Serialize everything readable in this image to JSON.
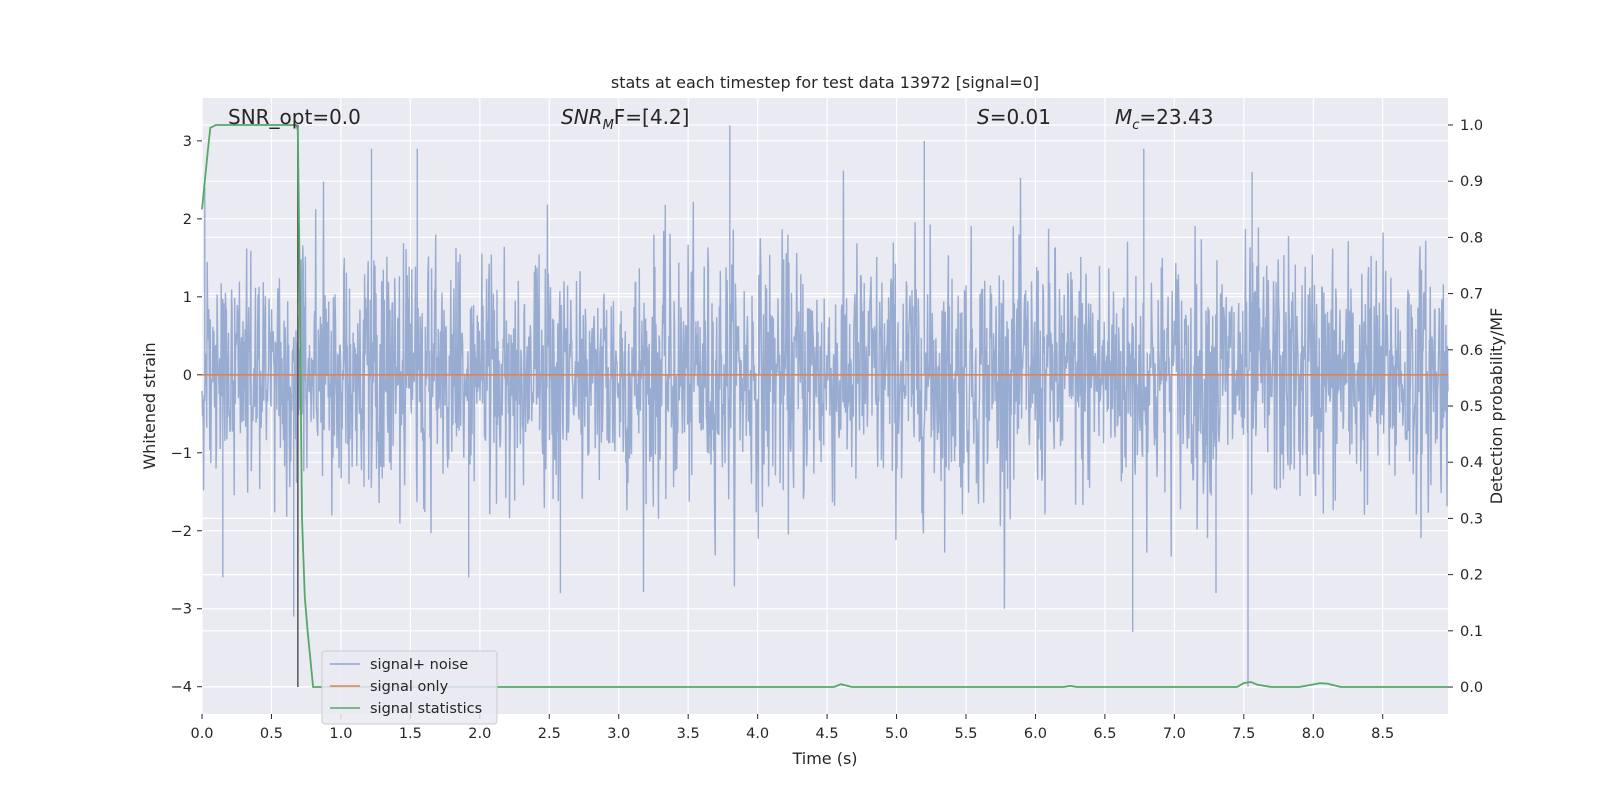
{
  "chart_data": {
    "type": "line",
    "title": "stats at each timestep for test data 13972 [signal=0]",
    "xlabel": "Time (s)",
    "ylabel": "Whitened strain",
    "y2label": "Detection probability/MF",
    "xlim": [
      0.0,
      8.97
    ],
    "ylim": [
      -4.35,
      3.55
    ],
    "y2lim": [
      -0.048,
      1.048
    ],
    "xticks": [
      "0.0",
      "0.5",
      "1.0",
      "1.5",
      "2.0",
      "2.5",
      "3.0",
      "3.5",
      "4.0",
      "4.5",
      "5.0",
      "5.5",
      "6.0",
      "6.5",
      "7.0",
      "7.5",
      "8.0",
      "8.5"
    ],
    "xtick_values": [
      0.0,
      0.5,
      1.0,
      1.5,
      2.0,
      2.5,
      3.0,
      3.5,
      4.0,
      4.5,
      5.0,
      5.5,
      6.0,
      6.5,
      7.0,
      7.5,
      8.0,
      8.5
    ],
    "yticks": [
      "3",
      "2",
      "1",
      "0",
      "−1",
      "−2",
      "−3",
      "−4"
    ],
    "ytick_values": [
      3,
      2,
      1,
      0,
      -1,
      -2,
      -3,
      -4
    ],
    "y2ticks": [
      "1.0",
      "0.9",
      "0.8",
      "0.7",
      "0.6",
      "0.5",
      "0.4",
      "0.3",
      "0.2",
      "0.1",
      "0.0"
    ],
    "y2tick_values": [
      1.0,
      0.9,
      0.8,
      0.7,
      0.6,
      0.5,
      0.4,
      0.3,
      0.2,
      0.1,
      0.0
    ],
    "grid": true,
    "legend_placement": "lower-left",
    "annotations": {
      "snr_opt": "SNR_opt=0.0",
      "snr_mf_main": "SNR",
      "snr_mf_sub": "M",
      "snr_mf_rest": "F=[4.2]",
      "s_main": "S",
      "s_rest": "=0.01",
      "mc_main": "M",
      "mc_sub": "c",
      "mc_rest": "=23.43"
    },
    "marker_line_x": 0.69,
    "series": [
      {
        "name": "signal+ noise",
        "color": "#8fa4cc",
        "noise_std": 0.8,
        "spikes": [
          {
            "x": 0.02,
            "y": 2.4
          },
          {
            "x": 0.15,
            "y": -2.6
          },
          {
            "x": 0.66,
            "y": -3.1
          },
          {
            "x": 1.22,
            "y": 2.9
          },
          {
            "x": 1.55,
            "y": 2.9
          },
          {
            "x": 1.92,
            "y": -2.6
          },
          {
            "x": 2.58,
            "y": -2.8
          },
          {
            "x": 3.8,
            "y": 3.2
          },
          {
            "x": 5.2,
            "y": 3.0
          },
          {
            "x": 6.7,
            "y": -3.3
          },
          {
            "x": 6.78,
            "y": 2.9
          },
          {
            "x": 7.3,
            "y": -2.8
          },
          {
            "x": 7.53,
            "y": -4.0
          },
          {
            "x": 7.56,
            "y": 2.6
          }
        ]
      },
      {
        "name": "signal only",
        "color": "#dd8452",
        "value": 0.0
      },
      {
        "name": "signal statistics",
        "color": "#55a868",
        "axis": "right",
        "x": [
          0.0,
          0.02,
          0.04,
          0.06,
          0.1,
          0.15,
          0.2,
          0.3,
          0.4,
          0.5,
          0.6,
          0.68,
          0.69,
          0.7,
          0.71,
          0.72,
          0.74,
          0.76,
          0.8,
          0.85,
          4.55,
          4.6,
          4.63,
          4.68,
          6.2,
          6.25,
          6.3,
          7.45,
          7.5,
          7.55,
          7.6,
          7.7,
          7.9,
          8.05,
          8.1,
          8.2,
          8.97
        ],
        "y": [
          0.85,
          0.9,
          0.95,
          0.995,
          1.0,
          1.0,
          1.0,
          1.0,
          1.0,
          1.0,
          1.0,
          1.0,
          0.99,
          0.8,
          0.55,
          0.3,
          0.16,
          0.1,
          0.0,
          0.0,
          0.0,
          0.005,
          0.003,
          0.0,
          0.0,
          0.002,
          0.0,
          0.0,
          0.007,
          0.009,
          0.004,
          0.0,
          0.0,
          0.007,
          0.006,
          0.0,
          0.0
        ]
      }
    ]
  }
}
